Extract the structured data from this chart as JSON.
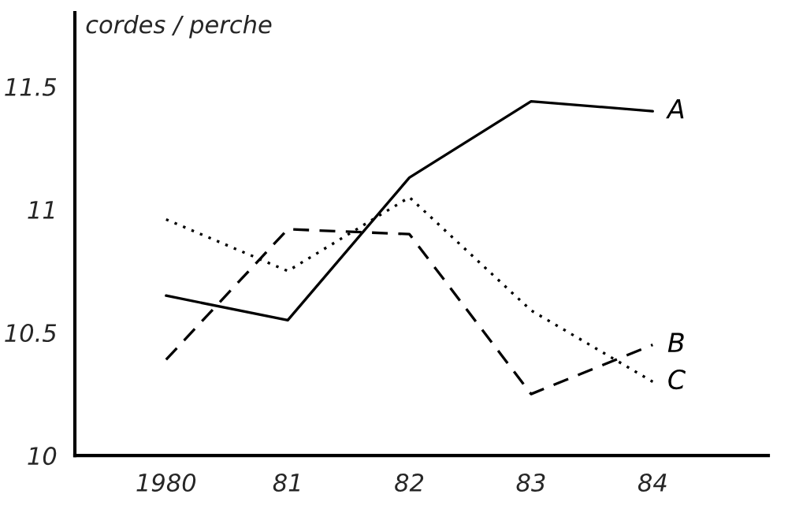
{
  "chart_data": {
    "type": "line",
    "ylabel": "cordes / perche",
    "categories": [
      "1980",
      "81",
      "82",
      "83",
      "84"
    ],
    "series": [
      {
        "name": "A",
        "color": "#000000",
        "line_style": "solid",
        "values": [
          10.65,
          10.55,
          11.13,
          11.44,
          11.4
        ]
      },
      {
        "name": "B",
        "color": "#000000",
        "line_style": "dashed",
        "values": [
          10.39,
          10.92,
          10.9,
          10.25,
          10.45
        ]
      },
      {
        "name": "C",
        "color": "#000000",
        "line_style": "dotted",
        "values": [
          10.96,
          10.75,
          11.05,
          10.59,
          10.3
        ]
      }
    ],
    "ylim": [
      10,
      11.8
    ],
    "yticks": [
      10,
      10.5,
      11,
      11.5
    ],
    "grid": false,
    "legend": false,
    "marker": "none"
  }
}
